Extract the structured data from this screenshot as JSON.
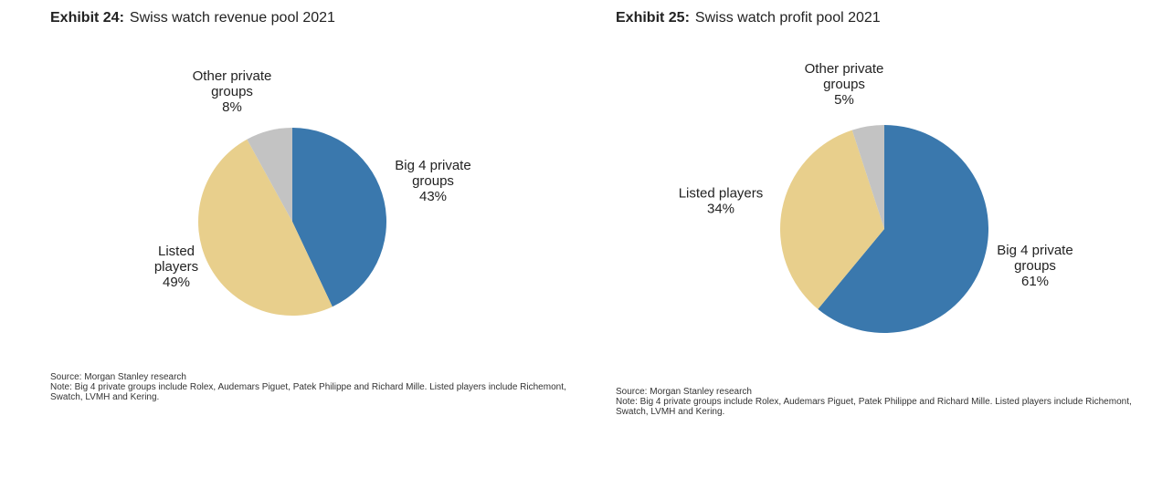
{
  "chart_data": [
    {
      "type": "pie",
      "exhibit": "Exhibit 24:",
      "title": "Swiss watch revenue pool 2021",
      "slices": [
        {
          "label": [
            "Big 4 private",
            "groups",
            "43%"
          ],
          "name": "Big 4 private groups",
          "value": 43,
          "color": "#3a78ad"
        },
        {
          "label": [
            "Listed",
            "players",
            "49%"
          ],
          "name": "Listed players",
          "value": 49,
          "color": "#e8cf8c"
        },
        {
          "label": [
            "Other private",
            "groups",
            "8%"
          ],
          "name": "Other private groups",
          "value": 8,
          "color": "#c3c3c3"
        }
      ],
      "source": "Source: Morgan Stanley research",
      "note": "Note: Big 4 private groups include Rolex, Audemars Piguet, Patek Philippe and Richard Mille. Listed players include Richemont, Swatch, LVMH and Kering."
    },
    {
      "type": "pie",
      "exhibit": "Exhibit 25:",
      "title": "Swiss watch profit pool 2021",
      "slices": [
        {
          "label": [
            "Big 4 private",
            "groups",
            "61%"
          ],
          "name": "Big 4 private groups",
          "value": 61,
          "color": "#3a78ad"
        },
        {
          "label": [
            "Listed players",
            "34%"
          ],
          "name": "Listed players",
          "value": 34,
          "color": "#e8cf8c"
        },
        {
          "label": [
            "Other private",
            "groups",
            "5%"
          ],
          "name": "Other private groups",
          "value": 5,
          "color": "#c3c3c3"
        }
      ],
      "source": "Source: Morgan Stanley research",
      "note": "Note: Big 4 private groups include Rolex, Audemars Piguet, Patek Philippe and Richard Mille. Listed players include Richemont, Swatch, LVMH and Kering."
    }
  ]
}
